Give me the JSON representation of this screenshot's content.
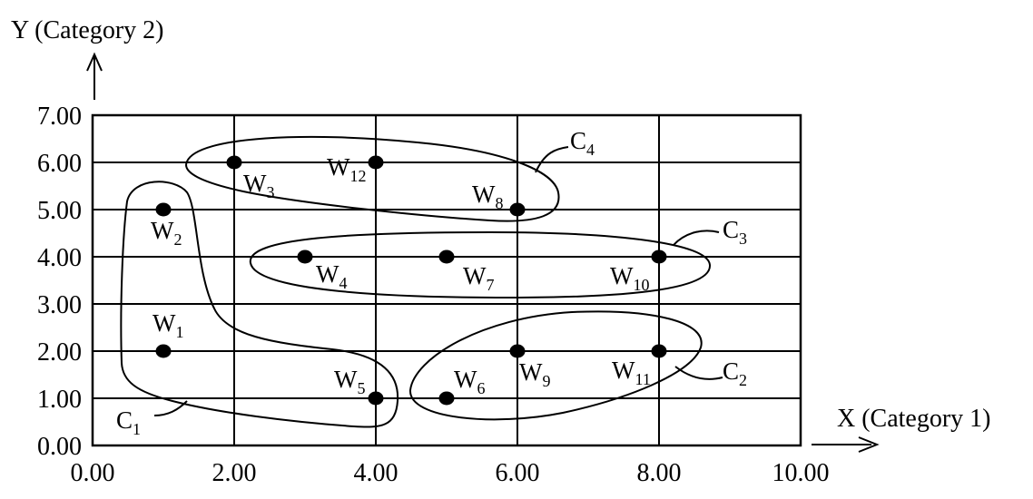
{
  "chart_data": {
    "type": "scatter",
    "title": "",
    "xlabel": "X (Category 1)",
    "ylabel": "Y (Category 2)",
    "xlim": [
      0,
      10
    ],
    "ylim": [
      0,
      7
    ],
    "x_ticks": [
      "0.00",
      "2.00",
      "4.00",
      "6.00",
      "8.00",
      "10.00"
    ],
    "y_ticks": [
      "0.00",
      "1.00",
      "2.00",
      "3.00",
      "4.00",
      "5.00",
      "6.00",
      "7.00"
    ],
    "grid": true,
    "points": [
      {
        "label": "W",
        "sub": "1",
        "x": 1,
        "y": 2
      },
      {
        "label": "W",
        "sub": "2",
        "x": 1,
        "y": 5
      },
      {
        "label": "W",
        "sub": "3",
        "x": 2,
        "y": 6
      },
      {
        "label": "W",
        "sub": "4",
        "x": 3,
        "y": 4
      },
      {
        "label": "W",
        "sub": "5",
        "x": 4,
        "y": 1
      },
      {
        "label": "W",
        "sub": "6",
        "x": 5,
        "y": 1
      },
      {
        "label": "W",
        "sub": "7",
        "x": 5,
        "y": 4
      },
      {
        "label": "W",
        "sub": "8",
        "x": 6,
        "y": 5
      },
      {
        "label": "W",
        "sub": "9",
        "x": 6,
        "y": 2
      },
      {
        "label": "W",
        "sub": "10",
        "x": 8,
        "y": 4
      },
      {
        "label": "W",
        "sub": "11",
        "x": 8,
        "y": 2
      },
      {
        "label": "W",
        "sub": "12",
        "x": 4,
        "y": 6
      }
    ],
    "clusters": [
      {
        "label": "C",
        "sub": "1",
        "members": [
          "W1",
          "W2",
          "W5"
        ]
      },
      {
        "label": "C",
        "sub": "2",
        "members": [
          "W6",
          "W9",
          "W11"
        ]
      },
      {
        "label": "C",
        "sub": "3",
        "members": [
          "W4",
          "W7",
          "W10"
        ]
      },
      {
        "label": "C",
        "sub": "4",
        "members": [
          "W3",
          "W12",
          "W8"
        ]
      }
    ]
  }
}
